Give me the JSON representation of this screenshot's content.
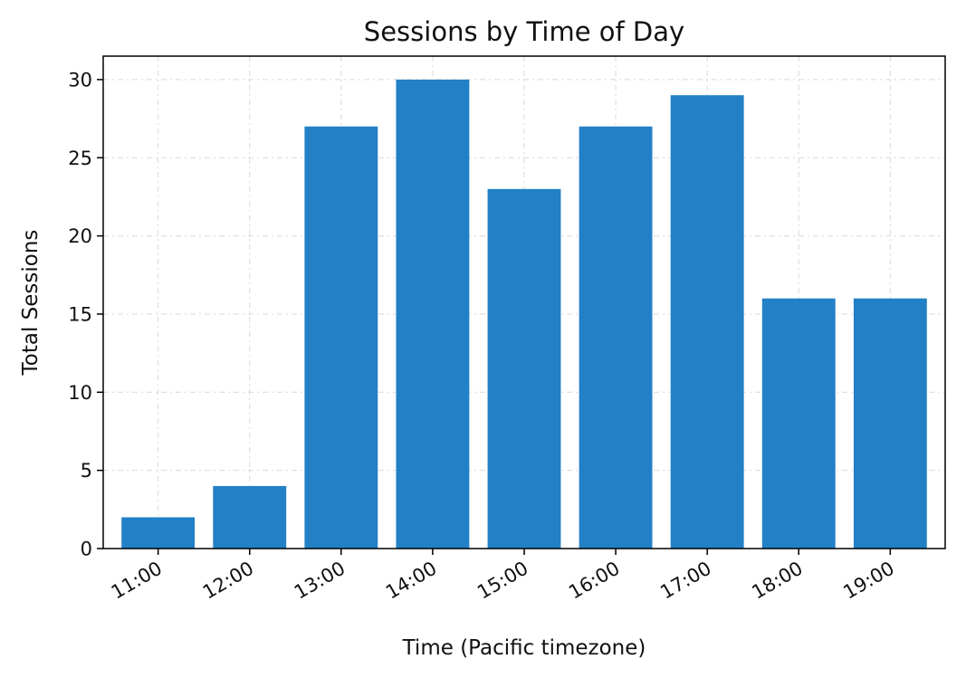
{
  "chart_data": {
    "type": "bar",
    "title": "Sessions by Time of Day",
    "xlabel": "Time (Pacific timezone)",
    "ylabel": "Total Sessions",
    "categories": [
      "11:00",
      "12:00",
      "13:00",
      "14:00",
      "15:00",
      "16:00",
      "17:00",
      "18:00",
      "19:00"
    ],
    "values": [
      2,
      4,
      27,
      30,
      23,
      27,
      29,
      16,
      16
    ],
    "ylim": [
      0,
      31.5
    ],
    "yticks": [
      0,
      5,
      10,
      15,
      20,
      25,
      30
    ],
    "grid": true,
    "bar_color": "#2280c6"
  }
}
